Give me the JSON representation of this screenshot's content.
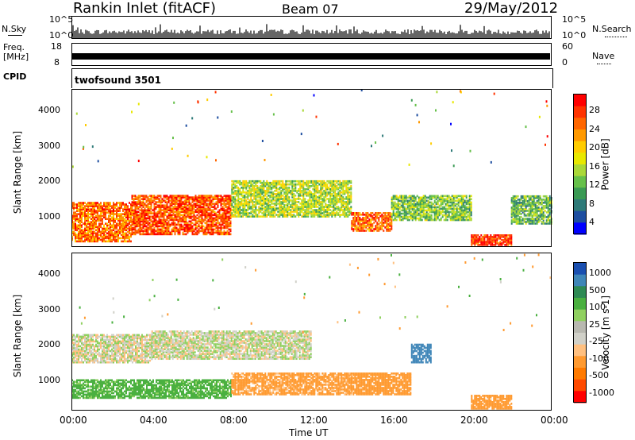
{
  "header": {
    "station": "Rankin Inlet (fitACF)",
    "beam": "Beam 07",
    "date": "29/May/2012"
  },
  "noise_panel": {
    "left_label": "N.Sky",
    "right_label": "N.Search",
    "y_ticks": [
      "10^5",
      "10^0"
    ],
    "right_ticks": [
      "10^5",
      "10^0"
    ]
  },
  "freq_panel": {
    "left_label_top": "Freq.",
    "left_label_bottom": "[MHz]",
    "left_ticks": [
      "18",
      "8"
    ],
    "right_label": "Nave",
    "right_ticks": [
      "60",
      "0"
    ]
  },
  "cpid_panel": {
    "label": "CPID",
    "program": "twofsound 3501"
  },
  "power_bar": {
    "label": "Power [dB]",
    "ticks": [
      "28",
      "24",
      "20",
      "16",
      "12",
      "8",
      "4"
    ],
    "colors": [
      "#ff0000",
      "#ff3300",
      "#ff6600",
      "#ff9900",
      "#ffcc00",
      "#e8e800",
      "#aad838",
      "#66c04a",
      "#3a9a54",
      "#2e7a78",
      "#1e4ea0",
      "#0000ff"
    ]
  },
  "velocity_bar": {
    "label": "Velocity [m s-1]",
    "ticks": [
      "1000",
      "500",
      "100",
      "25",
      "-25",
      "-100",
      "-500",
      "-1000"
    ],
    "colors": [
      "#1a4fb0",
      "#3f86b8",
      "#2e8a54",
      "#4ab040",
      "#90d060",
      "#b8b8b0",
      "#d0d0c8",
      "#ffc080",
      "#ff9a30",
      "#ff7a00",
      "#ff4a00",
      "#ff0000"
    ]
  },
  "power_chart": {
    "ylabel": "Slant Range [km]",
    "yticks": [
      "4000",
      "3000",
      "2000",
      "1000"
    ]
  },
  "velocity_chart": {
    "ylabel": "Slant Range [km]",
    "yticks": [
      "4000",
      "3000",
      "2000",
      "1000"
    ]
  },
  "time_axis": {
    "xlabel": "Time UT",
    "ticks": [
      "00:00",
      "04:00",
      "08:00",
      "12:00",
      "16:00",
      "20:00",
      "00:00"
    ]
  },
  "chart_data": [
    {
      "type": "heatmap",
      "title": "Power",
      "xlabel": "Time UT",
      "ylabel": "Slant Range [km]",
      "x_ticks": [
        "00:00",
        "04:00",
        "08:00",
        "12:00",
        "16:00",
        "20:00",
        "00:00"
      ],
      "xlim_hours": [
        0,
        24
      ],
      "ylim": [
        180,
        4600
      ],
      "colorbar": {
        "label": "Power [dB]",
        "range": [
          0,
          30
        ]
      },
      "bands": [
        {
          "time_h": [
            0,
            3
          ],
          "range_km": [
            300,
            1400
          ],
          "value": 24
        },
        {
          "time_h": [
            3,
            8
          ],
          "range_km": [
            500,
            1600
          ],
          "value": 26
        },
        {
          "time_h": [
            8,
            14
          ],
          "range_km": [
            1000,
            2000
          ],
          "value": 14
        },
        {
          "time_h": [
            14,
            16
          ],
          "range_km": [
            600,
            1100
          ],
          "value": 25
        },
        {
          "time_h": [
            16,
            20
          ],
          "range_km": [
            900,
            1600
          ],
          "value": 12
        },
        {
          "time_h": [
            20,
            22
          ],
          "range_km": [
            200,
            500
          ],
          "value": 27
        },
        {
          "time_h": [
            22,
            24
          ],
          "range_km": [
            800,
            1600
          ],
          "value": 10
        }
      ]
    },
    {
      "type": "heatmap",
      "title": "Velocity",
      "xlabel": "Time UT",
      "ylabel": "Slant Range [km]",
      "x_ticks": [
        "00:00",
        "04:00",
        "08:00",
        "12:00",
        "16:00",
        "20:00",
        "00:00"
      ],
      "xlim_hours": [
        0,
        24
      ],
      "ylim": [
        180,
        4600
      ],
      "colorbar": {
        "label": "Velocity [m s-1]",
        "ticks": [
          1000,
          500,
          100,
          25,
          -25,
          -100,
          -500,
          -1000
        ]
      },
      "bands": [
        {
          "time_h": [
            0,
            4
          ],
          "range_km": [
            1500,
            2300
          ],
          "value": 0
        },
        {
          "time_h": [
            4,
            12
          ],
          "range_km": [
            1600,
            2400
          ],
          "value": 10
        },
        {
          "time_h": [
            0,
            8
          ],
          "range_km": [
            500,
            1000
          ],
          "value": 150
        },
        {
          "time_h": [
            8,
            14
          ],
          "range_km": [
            600,
            1200
          ],
          "value": -150
        },
        {
          "time_h": [
            14,
            17
          ],
          "range_km": [
            600,
            1200
          ],
          "value": -300
        },
        {
          "time_h": [
            17,
            18
          ],
          "range_km": [
            1500,
            2000
          ],
          "value": 800
        },
        {
          "time_h": [
            20,
            22
          ],
          "range_km": [
            200,
            600
          ],
          "value": -400
        }
      ]
    }
  ]
}
